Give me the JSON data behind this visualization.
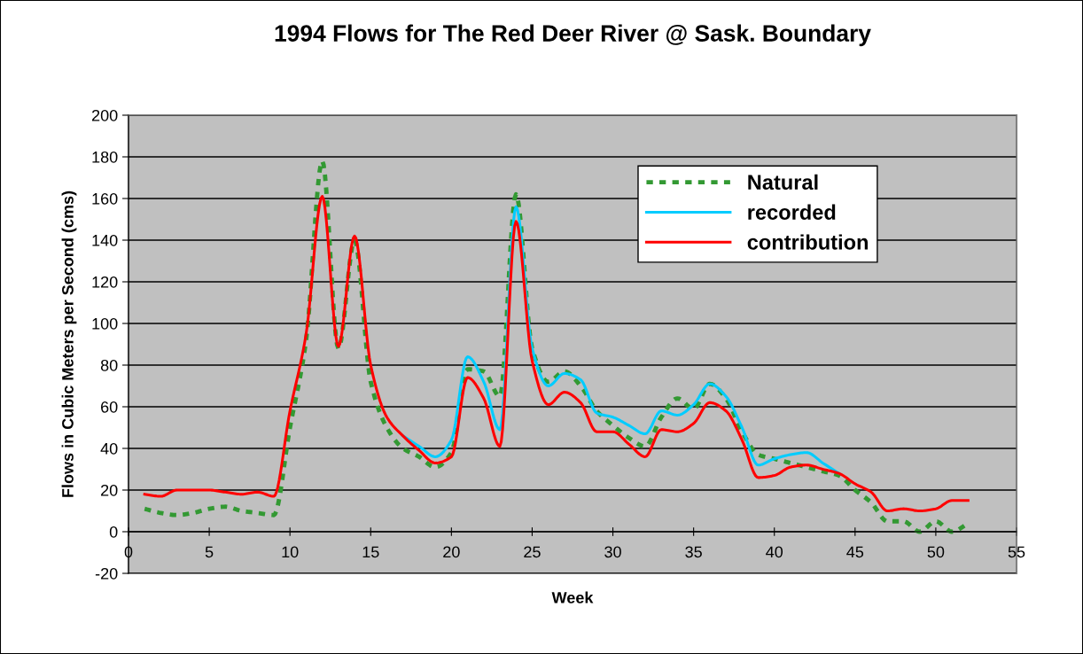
{
  "chart_data": {
    "type": "line",
    "title": "1994 Flows for The Red Deer River @ Sask. Boundary",
    "xlabel": "Week",
    "ylabel": "Flows in Cubic Meters per Second (cms)",
    "x": [
      1,
      2,
      3,
      4,
      5,
      6,
      7,
      8,
      9,
      10,
      11,
      12,
      13,
      14,
      15,
      16,
      17,
      18,
      19,
      20,
      21,
      22,
      23,
      24,
      25,
      26,
      27,
      28,
      29,
      30,
      31,
      32,
      33,
      34,
      35,
      36,
      37,
      38,
      39,
      40,
      41,
      42,
      43,
      44,
      45,
      46,
      47,
      48,
      49,
      50,
      51,
      52
    ],
    "series": [
      {
        "name": "Natural",
        "color": "#339933",
        "line_style": "dotted",
        "values": [
          11,
          9,
          8,
          9,
          11,
          12,
          10,
          9,
          8,
          50,
          92,
          178,
          88,
          140,
          72,
          50,
          40,
          36,
          31,
          38,
          78,
          77,
          65,
          162,
          88,
          72,
          77,
          70,
          58,
          51,
          45,
          41,
          55,
          64,
          59,
          71,
          64,
          48,
          37,
          35,
          33,
          31,
          29,
          27,
          20,
          14,
          5,
          5,
          0,
          5,
          0,
          4
        ]
      },
      {
        "name": "recorded",
        "color": "#00ccff",
        "line_style": "solid",
        "values": [
          null,
          null,
          null,
          null,
          null,
          null,
          null,
          null,
          null,
          null,
          null,
          null,
          null,
          null,
          null,
          null,
          46,
          41,
          36,
          44,
          84,
          72,
          49,
          156,
          88,
          70,
          76,
          73,
          57,
          55,
          51,
          47,
          58,
          56,
          61,
          71,
          65,
          50,
          32,
          35,
          37,
          38,
          33,
          28,
          null,
          null,
          null,
          null,
          null,
          null,
          null,
          null
        ]
      },
      {
        "name": "contribution",
        "color": "#ff0000",
        "line_style": "solid",
        "values": [
          18,
          17,
          20,
          20,
          20,
          19,
          18,
          19,
          17,
          58,
          95,
          161,
          89,
          142,
          80,
          55,
          46,
          39,
          33,
          36,
          74,
          64,
          41,
          149,
          82,
          61,
          67,
          62,
          48,
          48,
          42,
          36,
          49,
          48,
          52,
          62,
          58,
          44,
          26,
          27,
          31,
          32,
          30,
          28,
          23,
          19,
          10,
          11,
          10,
          11,
          15,
          15
        ]
      }
    ],
    "xlim": [
      0,
      55
    ],
    "xticks": [
      0,
      5,
      10,
      15,
      20,
      25,
      30,
      35,
      40,
      45,
      50,
      55
    ],
    "ylim": [
      -20,
      200
    ],
    "yticks": [
      -20,
      0,
      20,
      40,
      60,
      80,
      100,
      120,
      140,
      160,
      180,
      200
    ],
    "grid": "y",
    "legend": "top right",
    "marker": "none"
  }
}
